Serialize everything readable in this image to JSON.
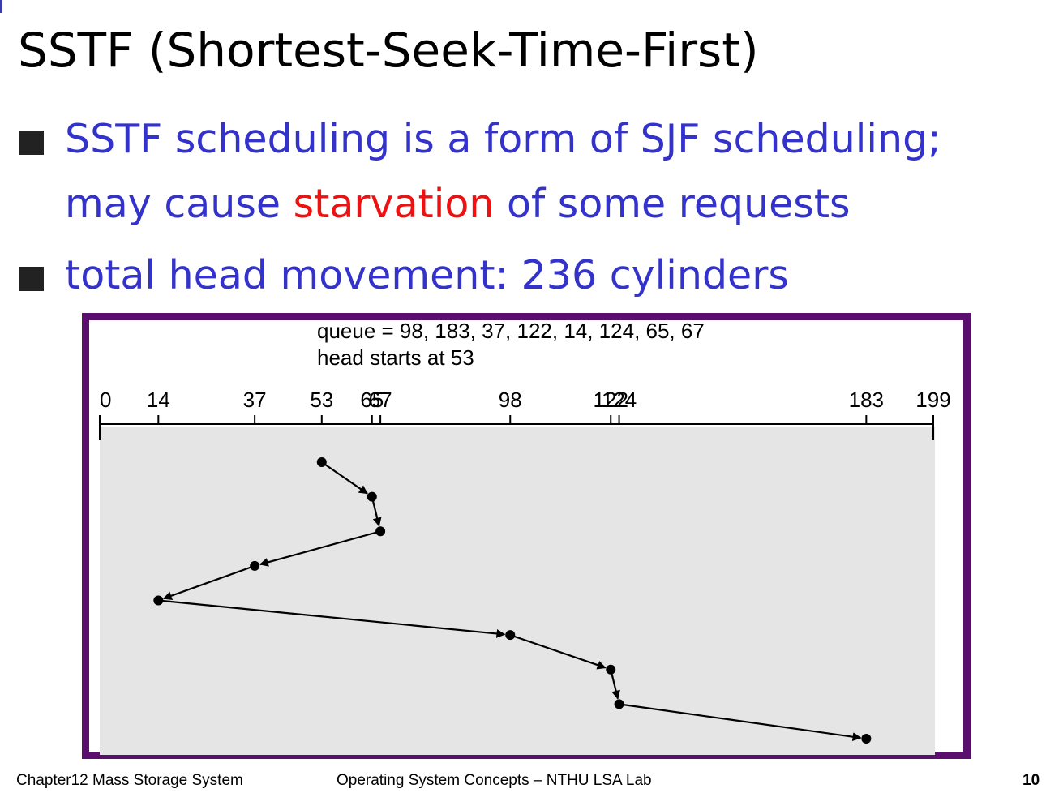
{
  "slide": {
    "title": "SSTF (Shortest-Seek-Time-First)",
    "bullets": [
      {
        "line1": "SSTF scheduling is a form of SJF scheduling;",
        "line2_before": "may cause ",
        "line2_highlight": "starvation",
        "line2_after": " of some requests"
      },
      {
        "text": "total head movement: 236 cylinders"
      }
    ],
    "colors": {
      "bullet_text": "#3333cc",
      "highlight": "#ee1111",
      "frame": "#5a0e6e",
      "track_bg": "#e5e5e5"
    }
  },
  "figure": {
    "queue_text": "queue = 98, 183, 37, 122, 14, 124, 65, 67",
    "head_text": "head starts at 53",
    "axis_min": 0,
    "axis_max": 199,
    "tick_labels": [
      "0",
      "14",
      "37",
      "53",
      "65",
      "67",
      "98",
      "122",
      "124",
      "183",
      "199"
    ],
    "service_order": [
      53,
      65,
      67,
      37,
      14,
      98,
      122,
      124,
      183
    ]
  },
  "footer": {
    "chapter": "Chapter12  Mass Storage System",
    "course": "Operating System Concepts – NTHU LSA Lab",
    "page": "10"
  }
}
